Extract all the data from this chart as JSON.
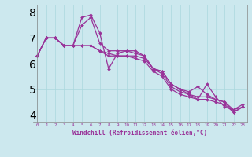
{
  "title": "",
  "xlabel": "Windchill (Refroidissement éolien,°C)",
  "ylabel": "",
  "background_color": "#cce8ee",
  "line_color": "#993399",
  "grid_color": "#aad8dd",
  "xlim": [
    -0.5,
    23.5
  ],
  "ylim": [
    3.7,
    8.3
  ],
  "yticks": [
    4,
    5,
    6,
    7,
    8
  ],
  "xticks": [
    0,
    1,
    2,
    3,
    4,
    5,
    6,
    7,
    8,
    9,
    10,
    11,
    12,
    13,
    14,
    15,
    16,
    17,
    18,
    19,
    20,
    21,
    22,
    23
  ],
  "series": [
    [
      6.3,
      7.0,
      7.0,
      6.7,
      6.7,
      7.8,
      7.9,
      7.2,
      5.8,
      6.4,
      6.5,
      6.5,
      6.3,
      5.8,
      5.7,
      5.2,
      5.0,
      4.8,
      4.6,
      5.2,
      4.7,
      4.3,
      4.2,
      4.4
    ],
    [
      6.3,
      7.0,
      7.0,
      6.7,
      6.7,
      7.5,
      7.8,
      6.8,
      6.5,
      6.5,
      6.5,
      6.4,
      6.3,
      5.8,
      5.7,
      5.2,
      5.0,
      4.9,
      5.1,
      4.8,
      4.6,
      4.5,
      4.1,
      4.3
    ],
    [
      6.3,
      7.0,
      7.0,
      6.7,
      6.7,
      6.7,
      6.7,
      6.5,
      6.4,
      6.3,
      6.3,
      6.3,
      6.2,
      5.8,
      5.6,
      5.1,
      4.9,
      4.8,
      4.7,
      4.7,
      4.6,
      4.5,
      4.2,
      4.3
    ],
    [
      6.3,
      7.0,
      7.0,
      6.7,
      6.7,
      6.7,
      6.7,
      6.5,
      6.3,
      6.3,
      6.3,
      6.2,
      6.1,
      5.7,
      5.5,
      5.0,
      4.8,
      4.7,
      4.6,
      4.6,
      4.5,
      4.4,
      4.1,
      4.3
    ]
  ]
}
